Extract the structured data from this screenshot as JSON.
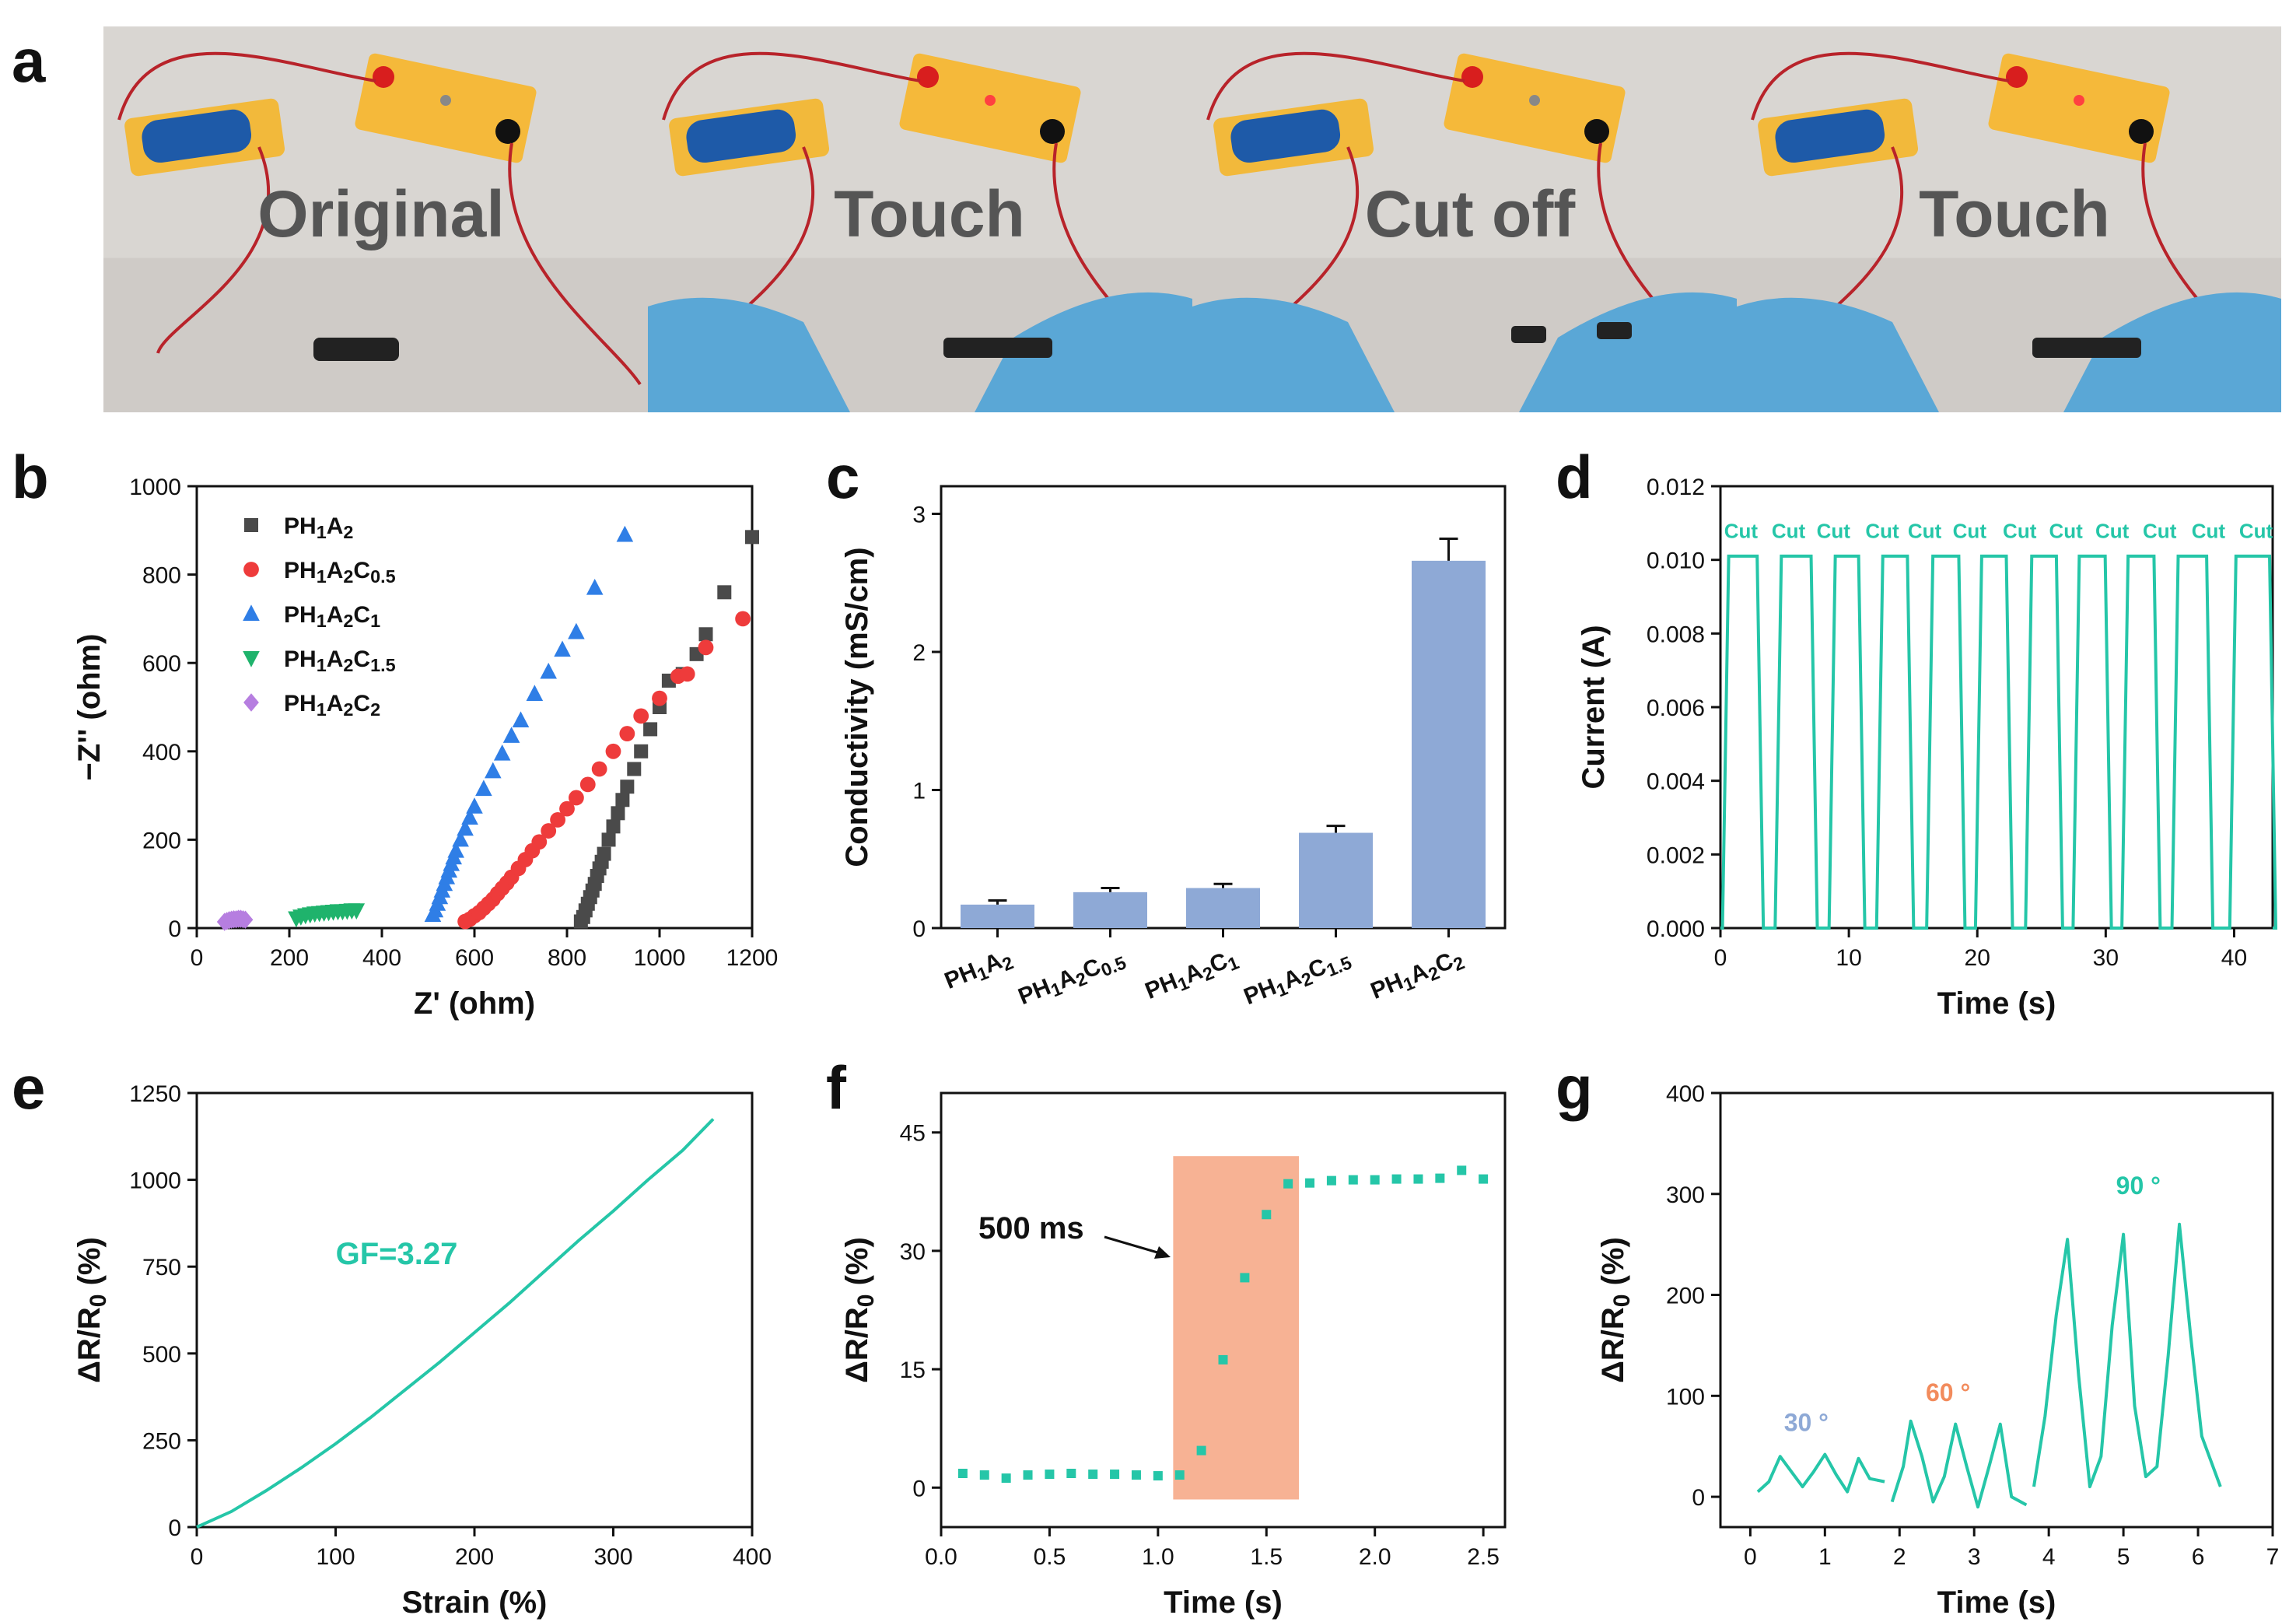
{
  "panel_labels": [
    "a",
    "b",
    "c",
    "d",
    "e",
    "f",
    "g"
  ],
  "photos": {
    "labels": [
      "Original",
      "Touch",
      "Cut off",
      "Touch"
    ]
  },
  "colors": {
    "black": "#4a4a4a",
    "red": "#ee3b3b",
    "blue": "#2f7ee6",
    "green": "#1fb36c",
    "purple": "#b67ee0",
    "bar": "#8ea9d6",
    "teal": "#25c6a8",
    "peach": "#f7b294",
    "angle30": "#8ea9d6",
    "angle60": "#f28b5c",
    "angle90": "#25c6a8"
  },
  "chart_data": [
    {
      "panel": "b",
      "type": "scatter",
      "xlabel": "Z' (ohm)",
      "ylabel": "−Z'' (ohm)",
      "xlim": [
        0,
        1200
      ],
      "ylim": [
        0,
        1000
      ],
      "xticks": [
        "0",
        "200",
        "400",
        "600",
        "800",
        "1000",
        "1200"
      ],
      "yticks": [
        "0",
        "200",
        "400",
        "600",
        "800",
        "1000"
      ],
      "legend": [
        "PH1A2",
        "PH1A2C0.5",
        "PH1A2C1",
        "PH1A2C1.5",
        "PH1A2C2"
      ],
      "series": [
        {
          "name": "PH1A2",
          "marker": "square",
          "x": [
            830,
            835,
            840,
            845,
            850,
            855,
            860,
            865,
            870,
            875,
            880,
            890,
            900,
            910,
            920,
            930,
            945,
            960,
            980,
            1000,
            1020,
            1050,
            1080,
            1100,
            1140,
            1200
          ],
          "y": [
            15,
            25,
            40,
            55,
            70,
            85,
            100,
            118,
            135,
            150,
            168,
            200,
            230,
            260,
            290,
            320,
            360,
            400,
            450,
            500,
            560,
            575,
            620,
            665,
            760,
            885
          ]
        },
        {
          "name": "PH1A2C0.5",
          "marker": "circle",
          "x": [
            580,
            590,
            600,
            610,
            620,
            630,
            640,
            650,
            660,
            670,
            680,
            695,
            710,
            725,
            740,
            760,
            780,
            800,
            820,
            845,
            870,
            900,
            930,
            960,
            1000,
            1040,
            1060,
            1100,
            1180
          ],
          "y": [
            15,
            20,
            28,
            35,
            45,
            55,
            65,
            78,
            90,
            102,
            115,
            135,
            155,
            175,
            195,
            220,
            245,
            270,
            295,
            325,
            360,
            400,
            440,
            480,
            520,
            570,
            575,
            635,
            700
          ]
        },
        {
          "name": "PH1A2C1",
          "marker": "triangle-up",
          "x": [
            510,
            515,
            520,
            525,
            530,
            535,
            540,
            545,
            550,
            555,
            560,
            570,
            580,
            590,
            600,
            620,
            640,
            660,
            680,
            700,
            730,
            760,
            790,
            820,
            860,
            925
          ],
          "y": [
            30,
            40,
            55,
            70,
            85,
            100,
            115,
            130,
            145,
            160,
            175,
            200,
            225,
            250,
            275,
            315,
            355,
            395,
            435,
            470,
            530,
            580,
            630,
            670,
            770,
            890
          ]
        },
        {
          "name": "PH1A2C1.5",
          "marker": "triangle-down",
          "x": [
            215,
            225,
            235,
            245,
            255,
            265,
            275,
            285,
            295,
            305,
            315,
            325,
            335,
            345
          ],
          "y": [
            22,
            26,
            29,
            31,
            33,
            34,
            35,
            36,
            37,
            38,
            38,
            39,
            40,
            40
          ]
        },
        {
          "name": "PH1A2C2",
          "marker": "diamond",
          "x": [
            60,
            65,
            70,
            75,
            80,
            85,
            90,
            95,
            100,
            105
          ],
          "y": [
            14,
            16,
            18,
            19,
            20,
            20,
            21,
            21,
            20,
            19
          ]
        }
      ]
    },
    {
      "panel": "c",
      "type": "bar",
      "ylabel": "Conductivity (mS/cm)",
      "ylim": [
        0,
        3.2
      ],
      "yticks": [
        "0",
        "1",
        "2",
        "3"
      ],
      "categories": [
        "PH1A2",
        "PH1A2C0.5",
        "PH1A2C1",
        "PH1A2C1.5",
        "PH1A2C2"
      ],
      "values": [
        0.17,
        0.26,
        0.29,
        0.69,
        2.66
      ],
      "errors": [
        0.03,
        0.03,
        0.03,
        0.05,
        0.16
      ]
    },
    {
      "panel": "d",
      "type": "line",
      "xlabel": "Time (s)",
      "ylabel": "Current (A)",
      "xlim": [
        0,
        43
      ],
      "ylim": [
        0,
        0.012
      ],
      "xticks": [
        "0",
        "10",
        "20",
        "30",
        "40"
      ],
      "yticks": [
        "0.000",
        "0.002",
        "0.004",
        "0.006",
        "0.008",
        "0.010",
        "0.012"
      ],
      "high_value": 0.0101,
      "low_value": 0,
      "high_segments": [
        [
          0.4,
          3.1
        ],
        [
          4.5,
          7.3
        ],
        [
          8.7,
          11.0
        ],
        [
          12.4,
          14.8
        ],
        [
          16.3,
          18.8
        ],
        [
          20.1,
          22.5
        ],
        [
          24.0,
          26.4
        ],
        [
          27.7,
          30.2
        ],
        [
          31.5,
          34.0
        ],
        [
          35.4,
          38.1
        ],
        [
          39.9,
          43.0
        ]
      ],
      "annotation": "Cut",
      "annotation_x": [
        1.6,
        5.3,
        8.8,
        12.6,
        15.9,
        19.4,
        23.3,
        26.9,
        30.5,
        34.2,
        38.0,
        41.7
      ],
      "annotation_y": 0.0106
    },
    {
      "panel": "e",
      "type": "line",
      "xlabel": "Strain (%)",
      "ylabel": "ΔR/R0 (%)",
      "xlim": [
        0,
        400
      ],
      "ylim": [
        0,
        1250
      ],
      "xticks": [
        "0",
        "100",
        "200",
        "300",
        "400"
      ],
      "yticks": [
        "0",
        "250",
        "500",
        "750",
        "1000",
        "1250"
      ],
      "x": [
        0,
        25,
        50,
        75,
        100,
        125,
        150,
        175,
        200,
        225,
        250,
        275,
        300,
        325,
        350,
        372
      ],
      "y": [
        0,
        45,
        105,
        170,
        240,
        315,
        395,
        475,
        560,
        645,
        735,
        825,
        910,
        1000,
        1085,
        1175
      ],
      "annotation": "GF=3.27"
    },
    {
      "panel": "f",
      "type": "scatter",
      "xlabel": "Time (s)",
      "ylabel": "ΔR/R0 (%)",
      "xlim": [
        0,
        2.6
      ],
      "ylim": [
        -5,
        50
      ],
      "xticks": [
        "0.0",
        "0.5",
        "1.0",
        "1.5",
        "2.0",
        "2.5"
      ],
      "yticks": [
        "0",
        "15",
        "30",
        "45"
      ],
      "x": [
        0.1,
        0.2,
        0.3,
        0.4,
        0.5,
        0.6,
        0.7,
        0.8,
        0.9,
        1.0,
        1.1,
        1.2,
        1.3,
        1.4,
        1.5,
        1.6,
        1.7,
        1.8,
        1.9,
        2.0,
        2.1,
        2.2,
        2.3,
        2.4,
        2.5
      ],
      "y": [
        1.8,
        1.6,
        1.2,
        1.6,
        1.7,
        1.8,
        1.7,
        1.7,
        1.6,
        1.5,
        1.6,
        4.7,
        16.2,
        26.6,
        34.6,
        38.5,
        38.6,
        38.9,
        39.0,
        39.0,
        39.1,
        39.1,
        39.2,
        40.2,
        39.1
      ],
      "highlight_range": [
        1.07,
        1.65,
        -1.5,
        42
      ],
      "annotation": "500 ms"
    },
    {
      "panel": "g",
      "type": "line",
      "xlabel": "Time (s)",
      "ylabel": "ΔR/R0 (%)",
      "xlim": [
        -0.4,
        7
      ],
      "ylim": [
        -30,
        400
      ],
      "xticks": [
        "0",
        "1",
        "2",
        "3",
        "4",
        "5",
        "6",
        "7"
      ],
      "yticks": [
        "0",
        "100",
        "200",
        "300",
        "400"
      ],
      "segments": [
        {
          "label": "30 °",
          "x": [
            0.1,
            0.25,
            0.4,
            0.55,
            0.7,
            0.85,
            1.0,
            1.15,
            1.3,
            1.45,
            1.6,
            1.8
          ],
          "y": [
            5,
            15,
            40,
            25,
            10,
            25,
            42,
            22,
            5,
            38,
            18,
            15
          ]
        },
        {
          "label": "60 °",
          "x": [
            1.9,
            2.05,
            2.15,
            2.3,
            2.45,
            2.6,
            2.75,
            2.9,
            3.05,
            3.2,
            3.35,
            3.5,
            3.7
          ],
          "y": [
            -5,
            30,
            75,
            40,
            -5,
            20,
            72,
            30,
            -10,
            30,
            72,
            0,
            -8
          ]
        },
        {
          "label": "90 °",
          "x": [
            3.8,
            3.95,
            4.1,
            4.25,
            4.4,
            4.55,
            4.7,
            4.85,
            5.0,
            5.15,
            5.3,
            5.45,
            5.6,
            5.75,
            5.9,
            6.05,
            6.3
          ],
          "y": [
            10,
            80,
            180,
            255,
            120,
            10,
            40,
            170,
            260,
            90,
            20,
            30,
            140,
            270,
            160,
            60,
            10
          ]
        }
      ]
    }
  ]
}
